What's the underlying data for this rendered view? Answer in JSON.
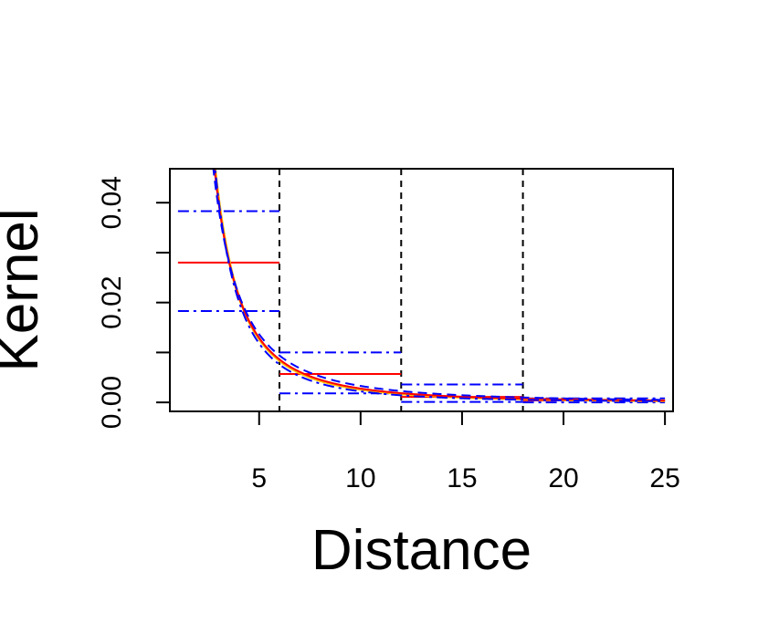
{
  "chart_data": {
    "type": "line",
    "title": "",
    "xlabel": "Distance",
    "ylabel": "Kernel",
    "xlim": [
      0.6,
      25.4
    ],
    "ylim": [
      -0.0018,
      0.0468
    ],
    "x_ticks": [
      5,
      10,
      15,
      20,
      25
    ],
    "x_tick_labels": [
      "5",
      "10",
      "15",
      "20",
      "25"
    ],
    "y_ticks": [
      0.0,
      0.01,
      0.02,
      0.03,
      0.04
    ],
    "y_tick_labels": [
      "0.00",
      "",
      "0.02",
      "",
      "0.04"
    ],
    "grid": false,
    "legend": "none",
    "colors": {
      "step_estimate": "#ff0000",
      "step_bounds": "#0000ff",
      "curve_gold": "#ffc000",
      "curve_red": "#ff0000",
      "curve_blue": "#0000ff",
      "bin_lines": "#000000",
      "axes": "#000000"
    },
    "bin_breaks": [
      6,
      12,
      18
    ],
    "steps": [
      {
        "x0": 1.0,
        "x1": 6,
        "estimate": 0.028,
        "lower": 0.0183,
        "upper": 0.0383
      },
      {
        "x0": 6,
        "x1": 12,
        "estimate": 0.0057,
        "lower": 0.0018,
        "upper": 0.01
      },
      {
        "x0": 12,
        "x1": 18,
        "estimate": 0.0011,
        "lower": 0.0001,
        "upper": 0.0036
      },
      {
        "x0": 18,
        "x1": 25,
        "estimate": 0.0004,
        "lower": 0.0,
        "upper": 0.0008
      }
    ],
    "curves": [
      {
        "style": "solid",
        "color_key": "curve_gold",
        "a": 0.5,
        "p": 2.28,
        "c": 0.0,
        "width": 3
      },
      {
        "style": "solid",
        "color_key": "curve_red",
        "a": 0.46,
        "p": 2.22,
        "c": 0.0,
        "width": 2
      },
      {
        "style": "dashed",
        "color_key": "curve_blue",
        "a": 0.37,
        "p": 2.05,
        "c": 0.0,
        "width": 2
      },
      {
        "style": "dotdash",
        "color_key": "curve_blue",
        "a": 0.58,
        "p": 2.42,
        "c": 0.0,
        "width": 2
      }
    ]
  }
}
